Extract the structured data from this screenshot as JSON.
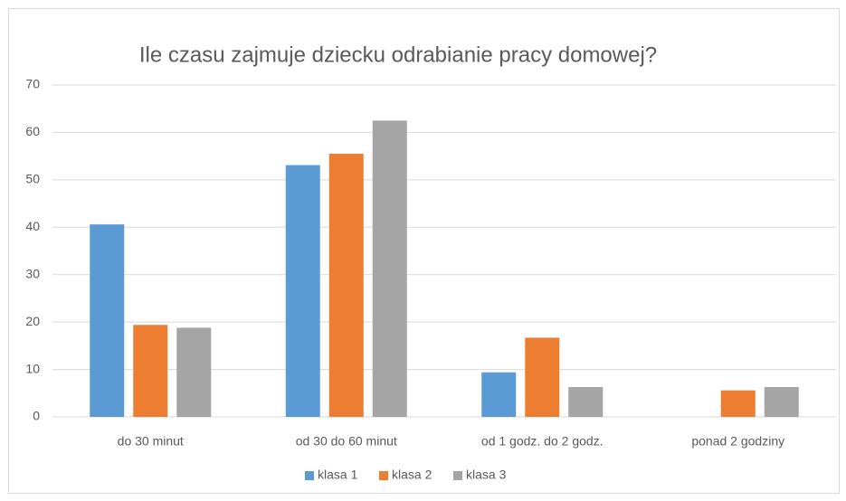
{
  "chart_data": {
    "type": "bar",
    "title": "Ile czasu zajmuje dziecku odrabianie pracy domowej?",
    "categories": [
      "do 30 minut",
      "od 30 do 60 minut",
      "od 1 godz. do 2 godz.",
      "ponad 2 godziny"
    ],
    "series": [
      {
        "name": "klasa 1",
        "color": "#5b9bd5",
        "values": [
          40.6,
          53.1,
          9.4,
          0
        ]
      },
      {
        "name": "klasa 2",
        "color": "#ed7d31",
        "values": [
          19.4,
          55.5,
          16.7,
          5.6
        ]
      },
      {
        "name": "klasa 3",
        "color": "#a5a5a5",
        "values": [
          18.8,
          62.5,
          6.3,
          6.3
        ]
      }
    ],
    "ylim": [
      0,
      70
    ],
    "yticks": [
      0,
      10,
      20,
      30,
      40,
      50,
      60,
      70
    ],
    "grid": true,
    "legend": "bottom"
  }
}
